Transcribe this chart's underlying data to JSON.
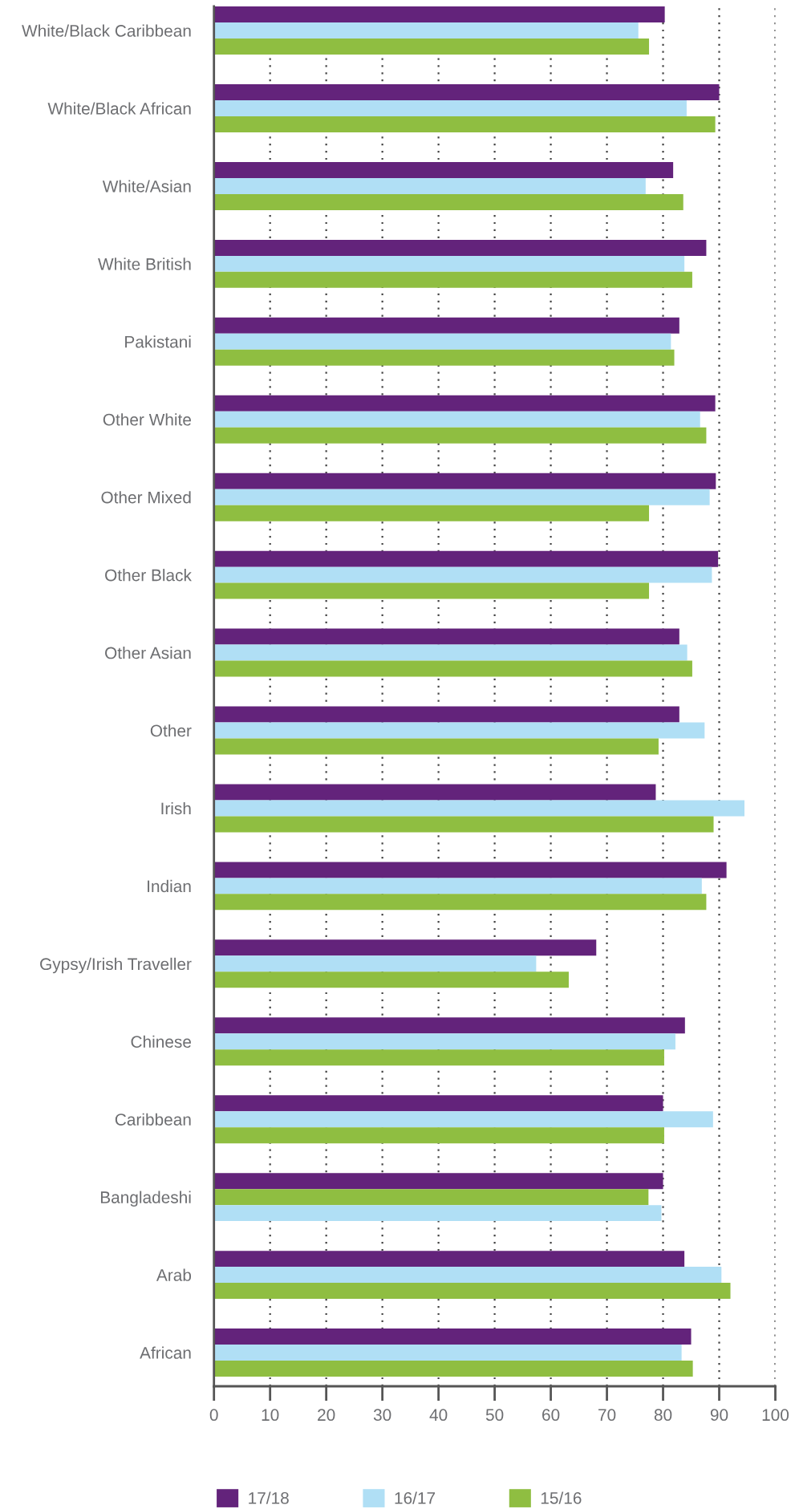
{
  "chart_data": {
    "type": "bar",
    "orientation": "horizontal",
    "categories": [
      "White/Black Caribbean",
      "White/Black African",
      "White/Asian",
      "White British",
      "Pakistani",
      "Other White",
      "Other Mixed",
      "Other Black",
      "Other Asian",
      "Other",
      "Irish",
      "Indian",
      "Gypsy/Irish Traveller",
      "Chinese",
      "Caribbean",
      "Bangladeshi",
      "Arab",
      "African"
    ],
    "series": [
      {
        "name": "17/18",
        "color": "#63237b",
        "values": [
          80.3,
          90.0,
          81.8,
          87.7,
          82.9,
          89.3,
          89.4,
          89.8,
          82.9,
          82.9,
          78.7,
          91.3,
          68.1,
          83.9,
          80.0,
          80.0,
          83.8,
          85.0
        ]
      },
      {
        "name": "16/17",
        "color": "#b0dff5",
        "colors": [
          "#b0dff5",
          "#b0dff5",
          "#b0dff5",
          "#b0dff5",
          "#b0dff5",
          "#b0dff5",
          "#b0dff5",
          "#b0dff5",
          "#b0dff5",
          "#b0dff5",
          "#b0dff5",
          "#b0dff5",
          "#b0dff5",
          "#b0dff5",
          "#b0dff5",
          "#8fbe41",
          "#b0dff5",
          "#b0dff5"
        ],
        "values": [
          75.6,
          84.2,
          76.9,
          83.8,
          81.4,
          86.6,
          88.3,
          88.7,
          84.3,
          87.4,
          94.5,
          86.9,
          57.4,
          82.2,
          88.9,
          77.4,
          90.4,
          83.3
        ]
      },
      {
        "name": "15/16",
        "color": "#8fbe41",
        "colors": [
          "#8fbe41",
          "#8fbe41",
          "#8fbe41",
          "#8fbe41",
          "#8fbe41",
          "#8fbe41",
          "#8fbe41",
          "#8fbe41",
          "#8fbe41",
          "#8fbe41",
          "#8fbe41",
          "#8fbe41",
          "#8fbe41",
          "#8fbe41",
          "#8fbe41",
          "#b0dff5",
          "#8fbe41",
          "#8fbe41"
        ],
        "values": [
          77.5,
          89.3,
          83.6,
          85.2,
          82.0,
          87.7,
          77.5,
          77.5,
          85.2,
          79.2,
          89.0,
          87.7,
          63.2,
          80.2,
          80.2,
          79.7,
          92.0,
          85.3
        ]
      }
    ],
    "xlim": [
      0,
      100
    ],
    "xticks": [
      0,
      10,
      20,
      30,
      40,
      50,
      60,
      70,
      80,
      90,
      100
    ],
    "grid": "x",
    "legend": "bottom"
  }
}
